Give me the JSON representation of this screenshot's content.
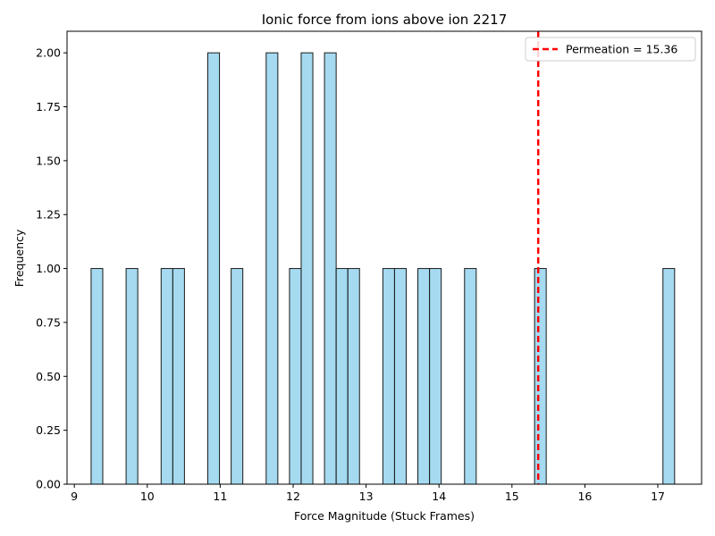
{
  "chart_data": {
    "type": "bar",
    "title": "Ionic force from ions above ion 2217",
    "xlabel": "Force Magnitude (Stuck Frames)",
    "ylabel": "Frequency",
    "xlim": [
      8.9,
      17.6
    ],
    "ylim": [
      0,
      2.1
    ],
    "xticks": [
      9,
      10,
      11,
      12,
      13,
      14,
      15,
      16,
      17
    ],
    "yticks": [
      0,
      0.25,
      0.5,
      0.75,
      1.0,
      1.25,
      1.5,
      1.75,
      2.0
    ],
    "ytick_labels": [
      "0.00",
      "0.25",
      "0.50",
      "0.75",
      "1.00",
      "1.25",
      "1.50",
      "1.75",
      "2.00"
    ],
    "bin_width": 0.16,
    "bars": [
      {
        "x": 9.23,
        "value": 1
      },
      {
        "x": 9.71,
        "value": 1
      },
      {
        "x": 10.19,
        "value": 1
      },
      {
        "x": 10.35,
        "value": 1
      },
      {
        "x": 10.83,
        "value": 2
      },
      {
        "x": 11.15,
        "value": 1
      },
      {
        "x": 11.63,
        "value": 2
      },
      {
        "x": 11.95,
        "value": 1
      },
      {
        "x": 12.11,
        "value": 2
      },
      {
        "x": 12.43,
        "value": 2
      },
      {
        "x": 12.59,
        "value": 1
      },
      {
        "x": 12.75,
        "value": 1
      },
      {
        "x": 13.23,
        "value": 1
      },
      {
        "x": 13.39,
        "value": 1
      },
      {
        "x": 13.71,
        "value": 1
      },
      {
        "x": 13.87,
        "value": 1
      },
      {
        "x": 14.35,
        "value": 1
      },
      {
        "x": 15.31,
        "value": 1
      },
      {
        "x": 17.07,
        "value": 1
      }
    ],
    "bar_color": "#87ceeb",
    "bar_edge_color": "#1a1a1a",
    "vline": {
      "x": 15.36,
      "label": "Permeation = 15.36",
      "color": "#ff0000"
    },
    "legend_placement": "top-right",
    "grid": false
  }
}
